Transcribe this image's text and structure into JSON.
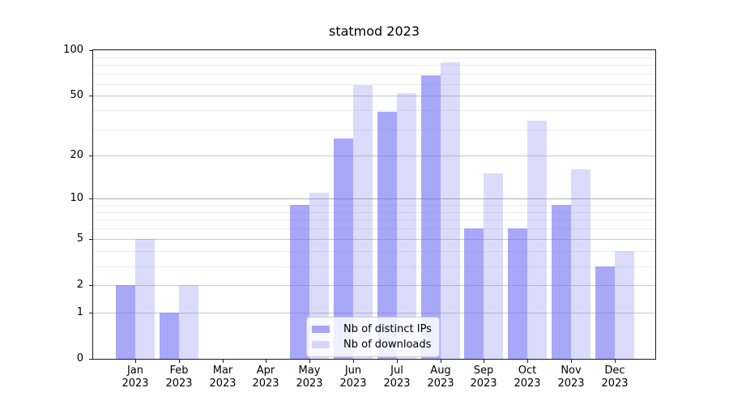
{
  "title": "statmod 2023",
  "chart_data": {
    "type": "bar",
    "title": "statmod 2023",
    "categories": [
      "Jan",
      "Feb",
      "Mar",
      "Apr",
      "May",
      "Jun",
      "Jul",
      "Aug",
      "Sep",
      "Oct",
      "Nov",
      "Dec"
    ],
    "year": "2023",
    "series": [
      {
        "name": "Nb of distinct IPs",
        "color": "rgba(110,110,245,0.60)",
        "values": [
          2,
          1,
          0,
          0,
          9,
          26,
          39,
          68,
          6,
          6,
          9,
          3
        ]
      },
      {
        "name": "Nb of downloads",
        "color": "rgba(110,110,245,0.25)",
        "values": [
          5,
          2,
          0,
          0,
          11,
          59,
          52,
          83,
          15,
          34,
          16,
          4
        ]
      }
    ],
    "yscale": "log1p",
    "ylim": [
      0,
      100
    ],
    "yticks": [
      0,
      1,
      2,
      5,
      10,
      20,
      50,
      100
    ],
    "yticks_minor": [
      3,
      4,
      6,
      7,
      8,
      9,
      30,
      40,
      60,
      70,
      80,
      90
    ],
    "grid": true,
    "legend_position": "lower center",
    "colors": {
      "grid_major": "#c9c9c9",
      "grid_decade": "#b0b0b0",
      "grid_minor": "#ececec",
      "spine": "#1a1a1a",
      "text": "#000000"
    }
  }
}
